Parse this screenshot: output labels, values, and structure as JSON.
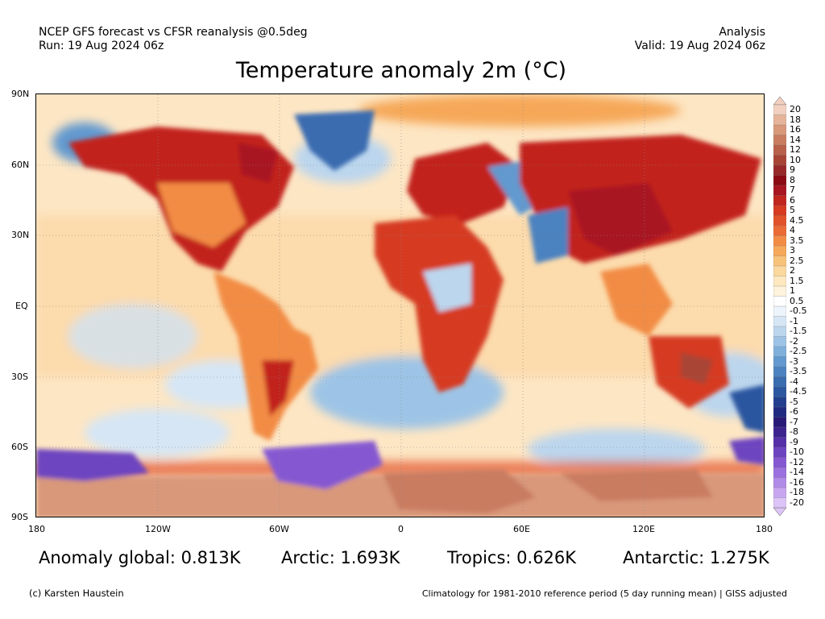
{
  "header": {
    "left_line1": "NCEP GFS forecast vs CFSR reanalysis @0.5deg",
    "left_line2": "Run: 19 Aug 2024 06z",
    "right_line1": "Analysis",
    "right_line2": "Valid: 19 Aug 2024 06z"
  },
  "title": "Temperature anomaly 2m (°C)",
  "lat_labels": [
    "90N",
    "60N",
    "30N",
    "EQ",
    "30S",
    "60S",
    "90S"
  ],
  "lon_labels": [
    "180",
    "120W",
    "60W",
    "0",
    "60E",
    "120E",
    "180"
  ],
  "colorbar": {
    "labels": [
      "20",
      "18",
      "16",
      "14",
      "12",
      "10",
      "9",
      "8",
      "7",
      "6",
      "5",
      "4.5",
      "4",
      "3.5",
      "3",
      "2.5",
      "2",
      "1.5",
      "1",
      "0.5",
      "-0.5",
      "-1",
      "-1.5",
      "-2",
      "-2.5",
      "-3",
      "-3.5",
      "-4",
      "-4.5",
      "-5",
      "-6",
      "-7",
      "-8",
      "-9",
      "-10",
      "-12",
      "-14",
      "-16",
      "-18",
      "-20"
    ],
    "colors": [
      "#f2d0c0",
      "#e6b49a",
      "#d9987a",
      "#c97c60",
      "#b8604a",
      "#a84436",
      "#98282a",
      "#8b0a14",
      "#a81420",
      "#c2241e",
      "#d63a20",
      "#e2522a",
      "#eb6b34",
      "#f28c44",
      "#f6a858",
      "#f9c27a",
      "#fbd89e",
      "#fde8c0",
      "#fef3dc",
      "#ffffff",
      "#eef4fb",
      "#d6e6f5",
      "#bcd6ee",
      "#9dc4e6",
      "#7fb0dc",
      "#6299cf",
      "#4c82c0",
      "#3a6cb0",
      "#2c56a0",
      "#223f8f",
      "#1f2a80",
      "#2a1a78",
      "#3d2390",
      "#5530a8",
      "#6d44c0",
      "#8558d2",
      "#9c70de",
      "#b28ae8",
      "#c8a6f0",
      "#dcc4f6"
    ]
  },
  "stats": {
    "global": "Anomaly global: 0.813K",
    "arctic": "Arctic: 1.693K",
    "tropics": "Tropics: 0.626K",
    "antarctic": "Antarctic: 1.275K"
  },
  "footer": {
    "credit": "(c) Karsten Haustein",
    "climatology": "Climatology for 1981-2010 reference period (5 day running mean) | GISS adjusted"
  }
}
